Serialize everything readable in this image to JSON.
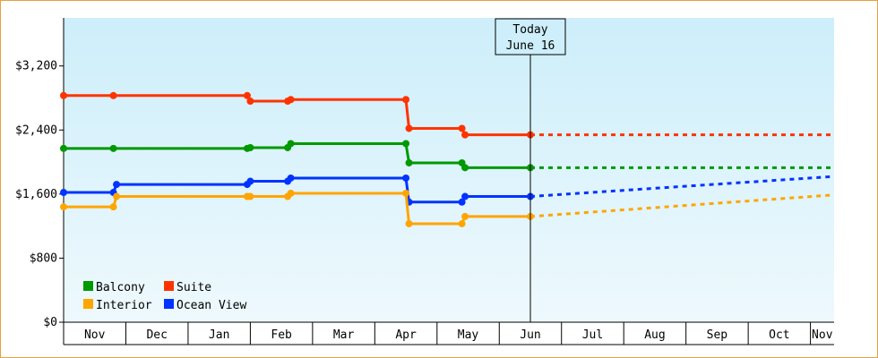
{
  "chart_data": {
    "type": "line",
    "step": true,
    "title": "",
    "xlabel": "",
    "ylabel": "",
    "ylim": [
      0,
      3800
    ],
    "yticks": [
      {
        "value": 0,
        "label": "$0"
      },
      {
        "value": 800,
        "label": "$800"
      },
      {
        "value": 1600,
        "label": "$1,600"
      },
      {
        "value": 2400,
        "label": "$2,400"
      },
      {
        "value": 3200,
        "label": "$3,200"
      }
    ],
    "months": [
      "Nov",
      "Dec",
      "Jan",
      "Feb",
      "Mar",
      "Apr",
      "May",
      "Jun",
      "Jul",
      "Aug",
      "Sep",
      "Oct",
      "Nov"
    ],
    "xlim": [
      0,
      12.38
    ],
    "today": {
      "line1": "Today",
      "line2": "June 16",
      "x": 7.5
    },
    "legend": {
      "placement": "bottom-left"
    },
    "background": {
      "top": "#cdeefa",
      "bottom": "#eef9fd"
    },
    "series": [
      {
        "name": "Suite",
        "color": "#ff3300",
        "points": [
          [
            0.0,
            2830
          ],
          [
            0.8,
            2830
          ],
          [
            2.95,
            2830
          ],
          [
            3.0,
            2760
          ],
          [
            3.6,
            2760
          ],
          [
            3.65,
            2780
          ],
          [
            5.5,
            2780
          ],
          [
            5.55,
            2420
          ],
          [
            6.4,
            2420
          ],
          [
            6.45,
            2340
          ],
          [
            7.5,
            2340
          ]
        ],
        "forecast": [
          [
            7.5,
            2340
          ],
          [
            12.38,
            2340
          ]
        ]
      },
      {
        "name": "Balcony",
        "color": "#009900",
        "points": [
          [
            0.0,
            2170
          ],
          [
            0.8,
            2170
          ],
          [
            2.95,
            2170
          ],
          [
            3.0,
            2180
          ],
          [
            3.6,
            2180
          ],
          [
            3.65,
            2230
          ],
          [
            5.5,
            2230
          ],
          [
            5.55,
            1990
          ],
          [
            6.4,
            1990
          ],
          [
            6.45,
            1930
          ],
          [
            7.5,
            1930
          ]
        ],
        "forecast": [
          [
            7.5,
            1930
          ],
          [
            12.38,
            1930
          ]
        ]
      },
      {
        "name": "Ocean View",
        "color": "#0033ff",
        "points": [
          [
            0.0,
            1620
          ],
          [
            0.8,
            1620
          ],
          [
            0.85,
            1720
          ],
          [
            2.95,
            1720
          ],
          [
            3.0,
            1760
          ],
          [
            3.6,
            1760
          ],
          [
            3.65,
            1800
          ],
          [
            5.5,
            1800
          ],
          [
            5.55,
            1500
          ],
          [
            6.4,
            1500
          ],
          [
            6.45,
            1570
          ],
          [
            7.5,
            1570
          ]
        ],
        "forecast": [
          [
            7.5,
            1570
          ],
          [
            12.38,
            1820
          ]
        ]
      },
      {
        "name": "Interior",
        "color": "#ffa500",
        "points": [
          [
            0.0,
            1440
          ],
          [
            0.8,
            1440
          ],
          [
            0.85,
            1570
          ],
          [
            2.95,
            1570
          ],
          [
            3.0,
            1570
          ],
          [
            3.6,
            1570
          ],
          [
            3.65,
            1610
          ],
          [
            5.5,
            1610
          ],
          [
            5.55,
            1230
          ],
          [
            6.4,
            1230
          ],
          [
            6.45,
            1320
          ],
          [
            7.5,
            1320
          ]
        ],
        "forecast": [
          [
            7.5,
            1320
          ],
          [
            12.38,
            1590
          ]
        ]
      }
    ],
    "legend_order": [
      "Balcony",
      "Suite",
      "Interior",
      "Ocean View"
    ]
  }
}
